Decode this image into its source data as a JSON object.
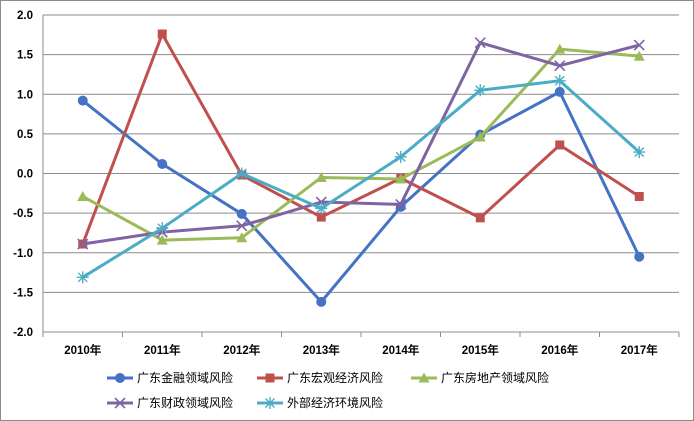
{
  "chart_data": {
    "type": "line",
    "title": "",
    "xlabel": "",
    "ylabel": "",
    "categories": [
      "2010年",
      "2011年",
      "2012年",
      "2013年",
      "2014年",
      "2015年",
      "2016年",
      "2017年"
    ],
    "ylim": [
      -2.0,
      2.0
    ],
    "yticks": [
      "2.0",
      "1.5",
      "1.0",
      "0.5",
      "0.0",
      "-0.5",
      "-1.0",
      "-1.5",
      "-2.0"
    ],
    "ytick_values": [
      2.0,
      1.5,
      1.0,
      0.5,
      0.0,
      -0.5,
      -1.0,
      -1.5,
      -2.0
    ],
    "grid": true,
    "legend_position": "bottom",
    "series": [
      {
        "name": "广东金融领域风险",
        "color": "#4472C4",
        "marker": "circle",
        "values": [
          0.92,
          0.12,
          -0.51,
          -1.62,
          -0.42,
          0.49,
          1.03,
          -1.05
        ]
      },
      {
        "name": "广东宏观经济风险",
        "color": "#C0504D",
        "marker": "square",
        "values": [
          -0.89,
          1.76,
          -0.02,
          -0.55,
          -0.06,
          -0.56,
          0.36,
          -0.29
        ]
      },
      {
        "name": "广东房地产领域风险",
        "color": "#9BBB59",
        "marker": "triangle",
        "values": [
          -0.29,
          -0.84,
          -0.81,
          -0.05,
          -0.07,
          0.46,
          1.57,
          1.48
        ]
      },
      {
        "name": "广东财政领域风险",
        "color": "#8064A2",
        "marker": "x",
        "values": [
          -0.89,
          -0.74,
          -0.66,
          -0.36,
          -0.39,
          1.65,
          1.36,
          1.62
        ]
      },
      {
        "name": "外部经济环境风险",
        "color": "#4BACC6",
        "marker": "star",
        "values": [
          -1.31,
          -0.69,
          0.0,
          -0.44,
          0.21,
          1.05,
          1.17,
          0.27
        ]
      }
    ]
  }
}
